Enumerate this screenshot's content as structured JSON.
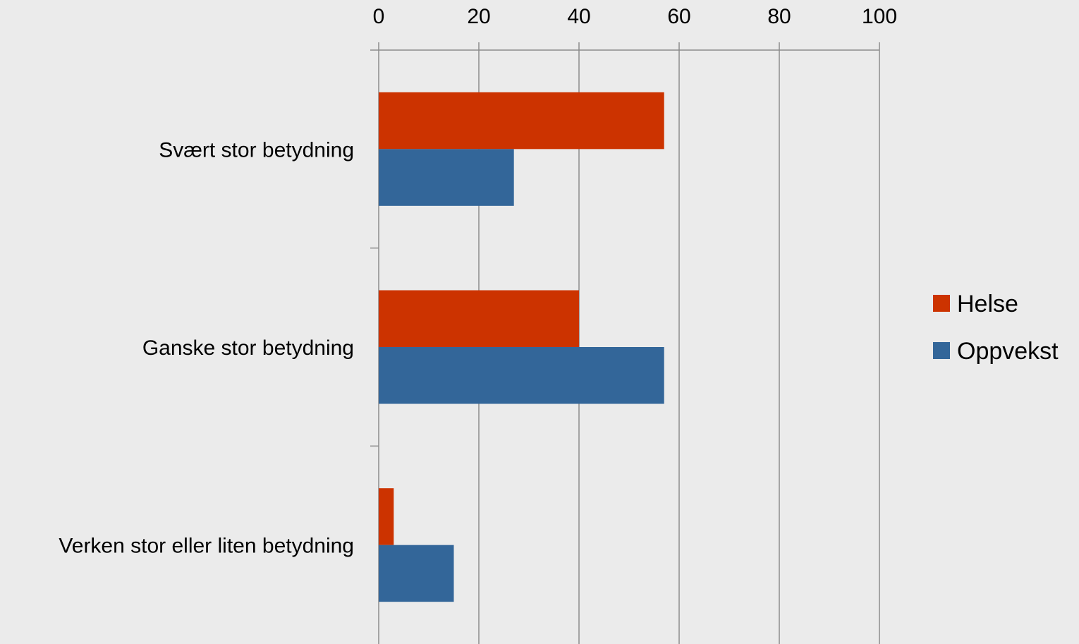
{
  "chart_data": {
    "type": "bar",
    "orientation": "horizontal",
    "categories": [
      "Svært stor betydning",
      "Ganske stor betydning",
      "Verken stor eller liten betydning"
    ],
    "series": [
      {
        "name": "Helse",
        "color": "#cc3300",
        "values": [
          57,
          40,
          3
        ]
      },
      {
        "name": "Oppvekst",
        "color": "#336699",
        "values": [
          27,
          57,
          15
        ]
      }
    ],
    "x_ticks": [
      0,
      20,
      40,
      60,
      80,
      100
    ],
    "xlim": [
      0,
      100
    ],
    "x_axis_position": "top",
    "grid": true,
    "legend_position": "right",
    "background": "#ebebeb"
  }
}
